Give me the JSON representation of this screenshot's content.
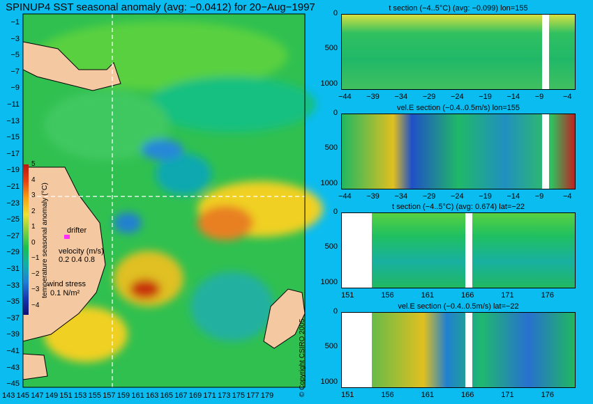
{
  "title": "SPINUP4 SST seasonal anomaly (avg: −0.0412) for 20−Aug−1997",
  "map": {
    "lat_ticks": [
      "−1",
      "−3",
      "−5",
      "−7",
      "−9",
      "−11",
      "−13",
      "−15",
      "−17",
      "−19",
      "−21",
      "−23",
      "−25",
      "−27",
      "−29",
      "−31",
      "−33",
      "−35",
      "−37",
      "−39",
      "−41",
      "−43",
      "−45"
    ],
    "lon_ticks": [
      "143",
      "145",
      "147",
      "149",
      "151",
      "153",
      "155",
      "157",
      "159",
      "161",
      "163",
      "165",
      "167",
      "169",
      "171",
      "173",
      "175",
      "177",
      "179"
    ],
    "colorbar": {
      "label": "temperature seasonal anomaly (°C)",
      "ticks": [
        "5",
        "4",
        "3",
        "2",
        "1",
        "0",
        "−1",
        "−2",
        "−3",
        "−4"
      ],
      "colors": [
        "#b71810",
        "#e84010",
        "#f5a010",
        "#f0e030",
        "#80d040",
        "#18c050",
        "#10b0a8",
        "#2080d8",
        "#1838b0",
        "#101070"
      ]
    },
    "drifter_label": "drifter",
    "velocity_label": "velocity (m/s)",
    "velocity_scale": "0.2 0.4 0.8",
    "wind_label": "wind stress",
    "wind_value": "0.1 N/m²",
    "section_lon": "155",
    "section_lat": "−22"
  },
  "panels": [
    {
      "title": "t section (−4..5°C) (avg: −0.099) lon=155",
      "x_ticks": [
        "−44",
        "−39",
        "−34",
        "−29",
        "−24",
        "−19",
        "−14",
        "−9",
        "−4"
      ],
      "y_ticks": [
        "0",
        "500",
        "1000"
      ]
    },
    {
      "title": "vel.E section (−0.4..0.5m/s) lon=155",
      "x_ticks": [
        "−44",
        "−39",
        "−34",
        "−29",
        "−24",
        "−19",
        "−14",
        "−9",
        "−4"
      ],
      "y_ticks": [
        "0",
        "500",
        "1000"
      ]
    },
    {
      "title": "t section (−4..5°C) (avg: 0.674) lat=−22",
      "x_ticks": [
        "151",
        "156",
        "161",
        "166",
        "171",
        "176"
      ],
      "y_ticks": [
        "0",
        "500",
        "1000"
      ]
    },
    {
      "title": "vel.E section (−0.4..0.5m/s) lat=−22",
      "x_ticks": [
        "151",
        "156",
        "161",
        "166",
        "171",
        "176"
      ],
      "y_ticks": [
        "0",
        "500",
        "1000"
      ]
    }
  ],
  "copyright": "© Copyright CSIRO 2005"
}
